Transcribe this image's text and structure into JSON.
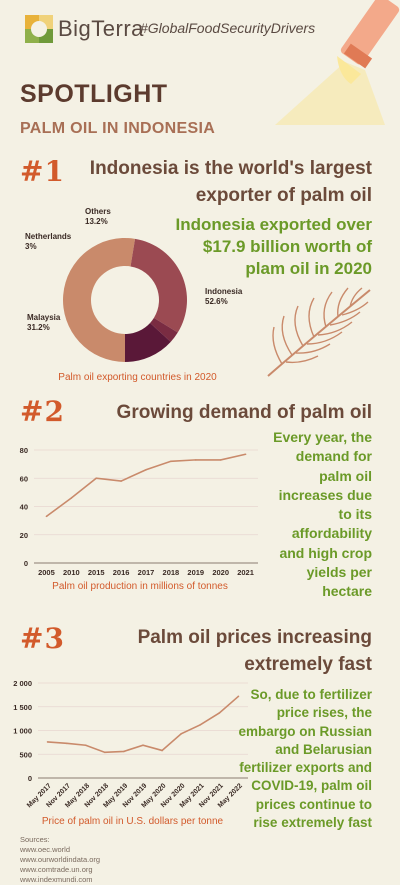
{
  "header": {
    "brand": "BigTerra",
    "hashtag": "#GlobalFoodSecurityDrivers"
  },
  "title": "SPOTLIGHT",
  "subtitle": "PALM OIL IN INDONESIA",
  "section1": {
    "number": "#1",
    "heading_line1": "Indonesia is the world's largest",
    "heading_line2": "exporter of palm oil",
    "callout_line1": "Indonesia exported over",
    "callout_line2": "$17.9 billion worth of",
    "callout_line3": "plam oil in 2020"
  },
  "section2": {
    "number": "#2",
    "heading": "Growing demand of palm oil",
    "callout_lines": [
      "Every year, the",
      "demand for",
      "palm oil",
      "increases due",
      "to its",
      "affordability",
      "and high crop",
      "yields per",
      "hectare"
    ]
  },
  "section3": {
    "number": "#3",
    "heading_line1": "Palm oil prices increasing",
    "heading_line2": "extremely fast",
    "callout_lines": [
      "So, due to fertilizer",
      "price rises, the",
      "embargo on Russian",
      "and Belarusian",
      "fertilizer exports and",
      "COVID-19, palm oil",
      "prices continue to",
      "rise extremely fast"
    ]
  },
  "sources": {
    "label": "Sources:",
    "items": [
      "www.oec.world",
      "www.ourworldindata.org",
      "www.comtrade.un.org",
      "www.indexmundi.com"
    ]
  },
  "colors": {
    "accent_orange": "#d25a2b",
    "green": "#6b9a28",
    "brown": "#6b4a3a",
    "background": "#f4f1e4"
  },
  "icons": [
    "bigterra-logo-icon",
    "spotlight-lamp-icon",
    "palm-leaf-icon"
  ],
  "chart_data": [
    {
      "type": "pie",
      "title": "Palm oil exporting countries in 2020",
      "categories": [
        "Indonesia",
        "Malaysia",
        "Netherlands",
        "Others"
      ],
      "value_labels": [
        "52.6%",
        "31.2%",
        "3%",
        "13.2%"
      ],
      "values": [
        52.6,
        31.2,
        3,
        13.2
      ],
      "colors": [
        "#c98a6b",
        "#9b4a52",
        "#7a2c42",
        "#5a1838"
      ]
    },
    {
      "type": "line",
      "title": "Palm oil production in millions of tonnes",
      "categories": [
        "2005",
        "2010",
        "2015",
        "2016",
        "2017",
        "2018",
        "2019",
        "2020",
        "2021"
      ],
      "values": [
        33,
        46,
        60,
        58,
        66,
        72,
        73,
        73,
        77
      ],
      "yticks": [
        "0",
        "20",
        "40",
        "60",
        "80"
      ],
      "ylim": [
        0,
        80
      ],
      "color": "#c98a6b"
    },
    {
      "type": "line",
      "title": "Price of palm oil in U.S. dollars per tonne",
      "categories": [
        "May 2017",
        "Nov 2017",
        "May 2018",
        "Nov 2018",
        "May 2019",
        "Nov 2019",
        "May 2020",
        "Nov 2020",
        "May 2021",
        "Nov 2021",
        "May 2022"
      ],
      "values": [
        760,
        730,
        690,
        540,
        560,
        690,
        580,
        930,
        1120,
        1370,
        1720
      ],
      "yticks": [
        "0",
        "500",
        "1 000",
        "1 500",
        "2 000"
      ],
      "ylim": [
        0,
        2000
      ],
      "color": "#c98a6b"
    }
  ]
}
